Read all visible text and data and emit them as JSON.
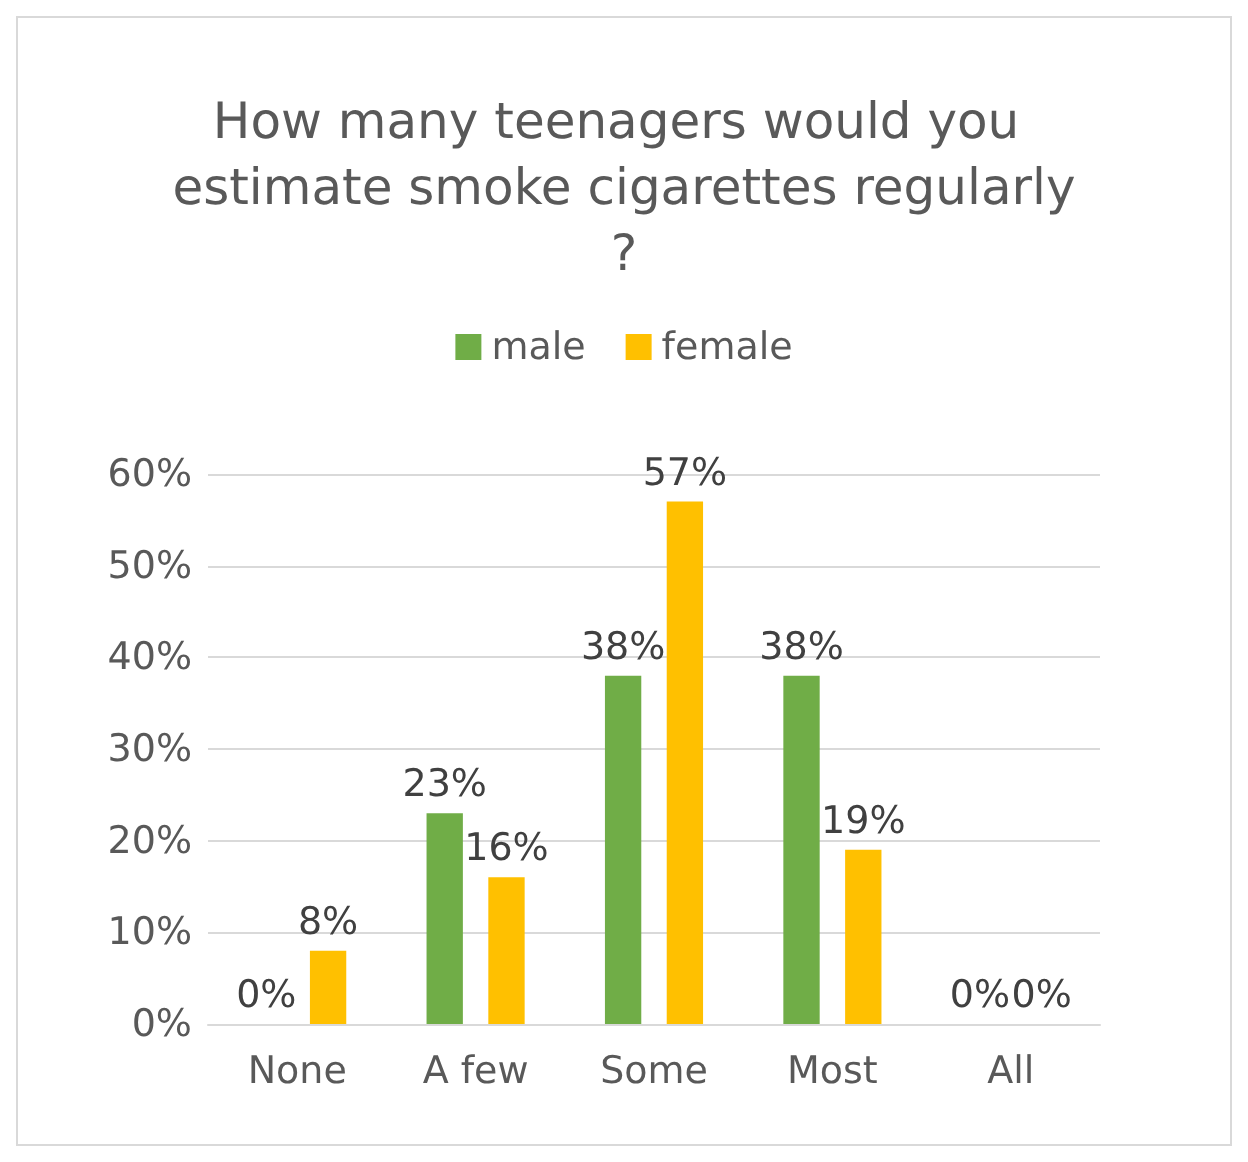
{
  "chart_data": {
    "type": "bar",
    "title": "How many teenagers would you estimate smoke cigarettes regularly?",
    "categories": [
      "None",
      "A few",
      "Some",
      "Most",
      "All"
    ],
    "series": [
      {
        "name": "male",
        "color": "#70ad47",
        "values": [
          0,
          23,
          38,
          38,
          0
        ],
        "value_labels": [
          "0%",
          "23%",
          "38%",
          "38%",
          "0%"
        ]
      },
      {
        "name": "female",
        "color": "#ffc000",
        "values": [
          8,
          16,
          57,
          19,
          0
        ],
        "value_labels": [
          "8%",
          "16%",
          "57%",
          "19%",
          "0%"
        ]
      }
    ],
    "ylim": [
      0,
      60
    ],
    "yticks": [
      {
        "value": 0,
        "label": "0%"
      },
      {
        "value": 10,
        "label": "10%"
      },
      {
        "value": 20,
        "label": "20%"
      },
      {
        "value": 30,
        "label": "30%"
      },
      {
        "value": 40,
        "label": "40%"
      },
      {
        "value": 50,
        "label": "50%"
      },
      {
        "value": 60,
        "label": "60%"
      }
    ],
    "grid": "y",
    "legend": "top"
  }
}
